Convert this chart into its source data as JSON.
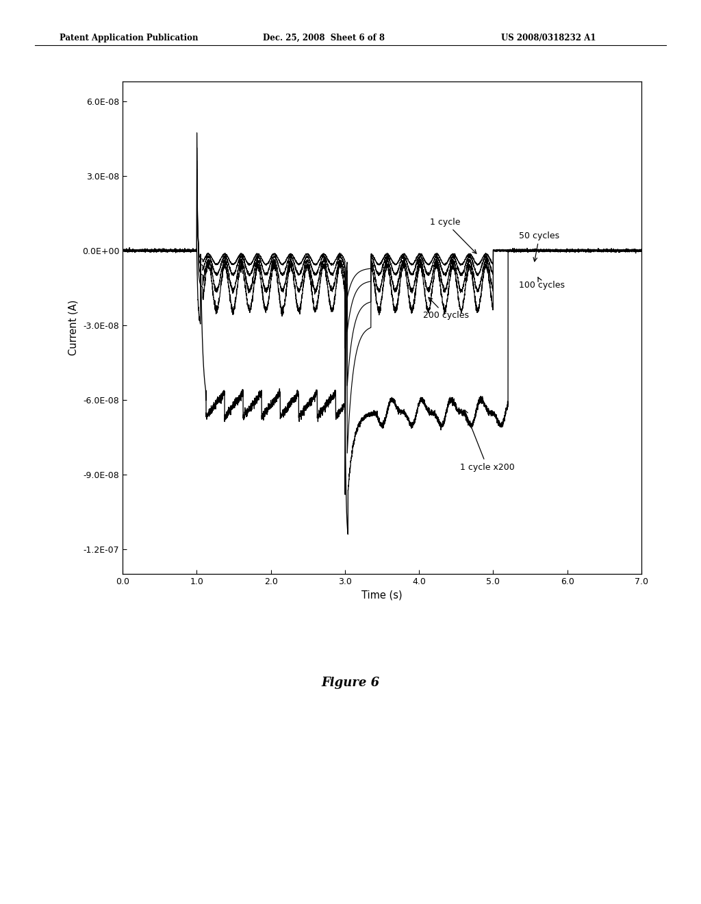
{
  "header_left": "Patent Application Publication",
  "header_mid": "Dec. 25, 2008  Sheet 6 of 8",
  "header_right": "US 2008/0318232 A1",
  "xlabel": "Time (s)",
  "ylabel": "Current (A)",
  "xlim": [
    0.0,
    7.0
  ],
  "ylim": [
    -1.3e-07,
    6.8e-08
  ],
  "xticks": [
    0.0,
    1.0,
    2.0,
    3.0,
    4.0,
    5.0,
    6.0,
    7.0
  ],
  "yticks": [
    -1.2e-07,
    -9e-08,
    -6e-08,
    -3e-08,
    0.0,
    3e-08,
    6e-08
  ],
  "ytick_labels": [
    "-1.2E-07",
    "-9.0E-08",
    "-6.0E-08",
    "-3.0E-08",
    "0.0E+00",
    "3.0E-08",
    "6.0E-08"
  ],
  "figure_caption": "Figure 6",
  "background_color": "#ffffff",
  "line_color": "#000000"
}
